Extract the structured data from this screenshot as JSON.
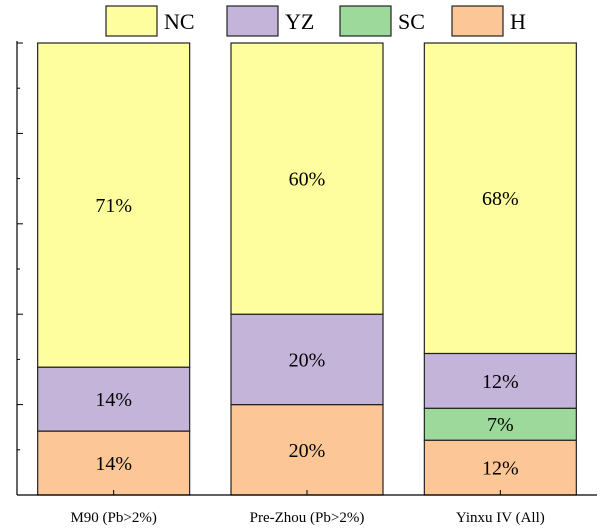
{
  "chart_data": {
    "type": "bar",
    "stacked": true,
    "orientation": "vertical",
    "categories": [
      "M90 (Pb>2%)",
      "Pre-Zhou (Pb>2%)",
      "Yinxu IV (All)"
    ],
    "series": [
      {
        "name": "H",
        "color": "#FCC697",
        "values": [
          14,
          20,
          12
        ],
        "labels": [
          "14%",
          "20%",
          "12%"
        ]
      },
      {
        "name": "SC",
        "color": "#9CD99A",
        "values": [
          0,
          0,
          7
        ],
        "labels": [
          "",
          "",
          "7%"
        ]
      },
      {
        "name": "YZ",
        "color": "#C4B4DA",
        "values": [
          14,
          20,
          12
        ],
        "labels": [
          "14%",
          "20%",
          "12%"
        ]
      },
      {
        "name": "NC",
        "color": "#FEFE9F",
        "values": [
          71,
          60,
          68
        ],
        "labels": [
          "71%",
          "60%",
          "68%"
        ]
      }
    ],
    "legend_order": [
      "NC",
      "YZ",
      "SC",
      "H"
    ],
    "legend_position": "top",
    "ylim": [
      0,
      100
    ],
    "y_tick_labels_shown": false,
    "grid": false,
    "title": "",
    "xlabel": "",
    "ylabel": ""
  }
}
